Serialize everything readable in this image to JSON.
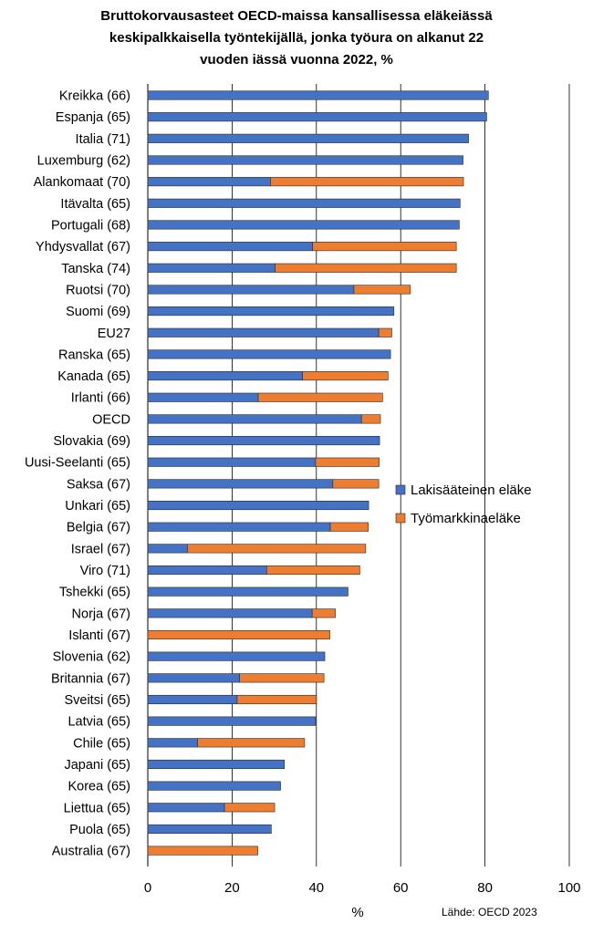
{
  "chart_data": {
    "type": "bar",
    "orientation": "horizontal",
    "stacked": true,
    "title_lines": [
      "Bruttokorvausasteet OECD-maissa kansallisessa eläkeiässä",
      "keskipalkkaisella työntekijällä, jonka työura on alkanut 22",
      "vuoden iässä vuonna 2022, %"
    ],
    "xlabel": "%",
    "ylabel": "",
    "xlim": [
      0,
      100
    ],
    "xticks": [
      0,
      20,
      40,
      60,
      80,
      100
    ],
    "grid": "vertical",
    "legend_position": "right",
    "source": "Lähde: OECD 2023",
    "categories": [
      "Kreikka (66)",
      "Espanja (65)",
      "Italia (71)",
      "Luxemburg (62)",
      "Alankomaat (70)",
      "Itävalta (65)",
      "Portugali (68)",
      "Yhdysvallat (67)",
      "Tanska (74)",
      "Ruotsi (70)",
      "Suomi (69)",
      "EU27",
      "Ranska (65)",
      "Kanada (65)",
      "Irlanti (66)",
      "OECD",
      "Slovakia (69)",
      "Uusi-Seelanti (65)",
      "Saksa (67)",
      "Unkari (65)",
      "Belgia (67)",
      "Israel (67)",
      "Viro  (71)",
      "Tshekki (65)",
      "Norja (67)",
      "Islanti (67)",
      "Slovenia (62)",
      "Britannia (67)",
      "Sveitsi (65)",
      "Latvia (65)",
      "Chile (65)",
      "Japani (65)",
      "Korea (65)",
      "Liettua (65)",
      "Puola (65)",
      "Australia (67)"
    ],
    "series": [
      {
        "name": "Lakisääteinen eläke",
        "color": "#4472C4",
        "values": [
          80.8,
          80.4,
          76.1,
          74.8,
          29.1,
          74.1,
          73.9,
          39.1,
          30.2,
          48.9,
          58.4,
          54.8,
          57.6,
          36.7,
          26.2,
          50.7,
          55.0,
          39.8,
          43.9,
          52.4,
          43.3,
          9.4,
          28.2,
          47.5,
          39.0,
          0.0,
          42.0,
          21.8,
          21.2,
          39.8,
          11.8,
          32.4,
          31.5,
          18.2,
          29.3,
          0.0
        ]
      },
      {
        "name": "Työmarkkinaeläke",
        "color": "#ED7D31",
        "values": [
          0.0,
          0.0,
          0.0,
          0.0,
          45.8,
          0.0,
          0.0,
          34.1,
          43.0,
          13.4,
          0.0,
          3.1,
          0.0,
          20.3,
          29.5,
          4.5,
          0.0,
          15.1,
          10.9,
          0.0,
          9.0,
          42.3,
          22.1,
          0.0,
          5.5,
          43.2,
          0.0,
          20.0,
          18.8,
          0.0,
          25.4,
          0.0,
          0.0,
          11.9,
          0.0,
          26.1
        ]
      }
    ],
    "axis_color": "#000000",
    "grid_color": "#000000"
  }
}
